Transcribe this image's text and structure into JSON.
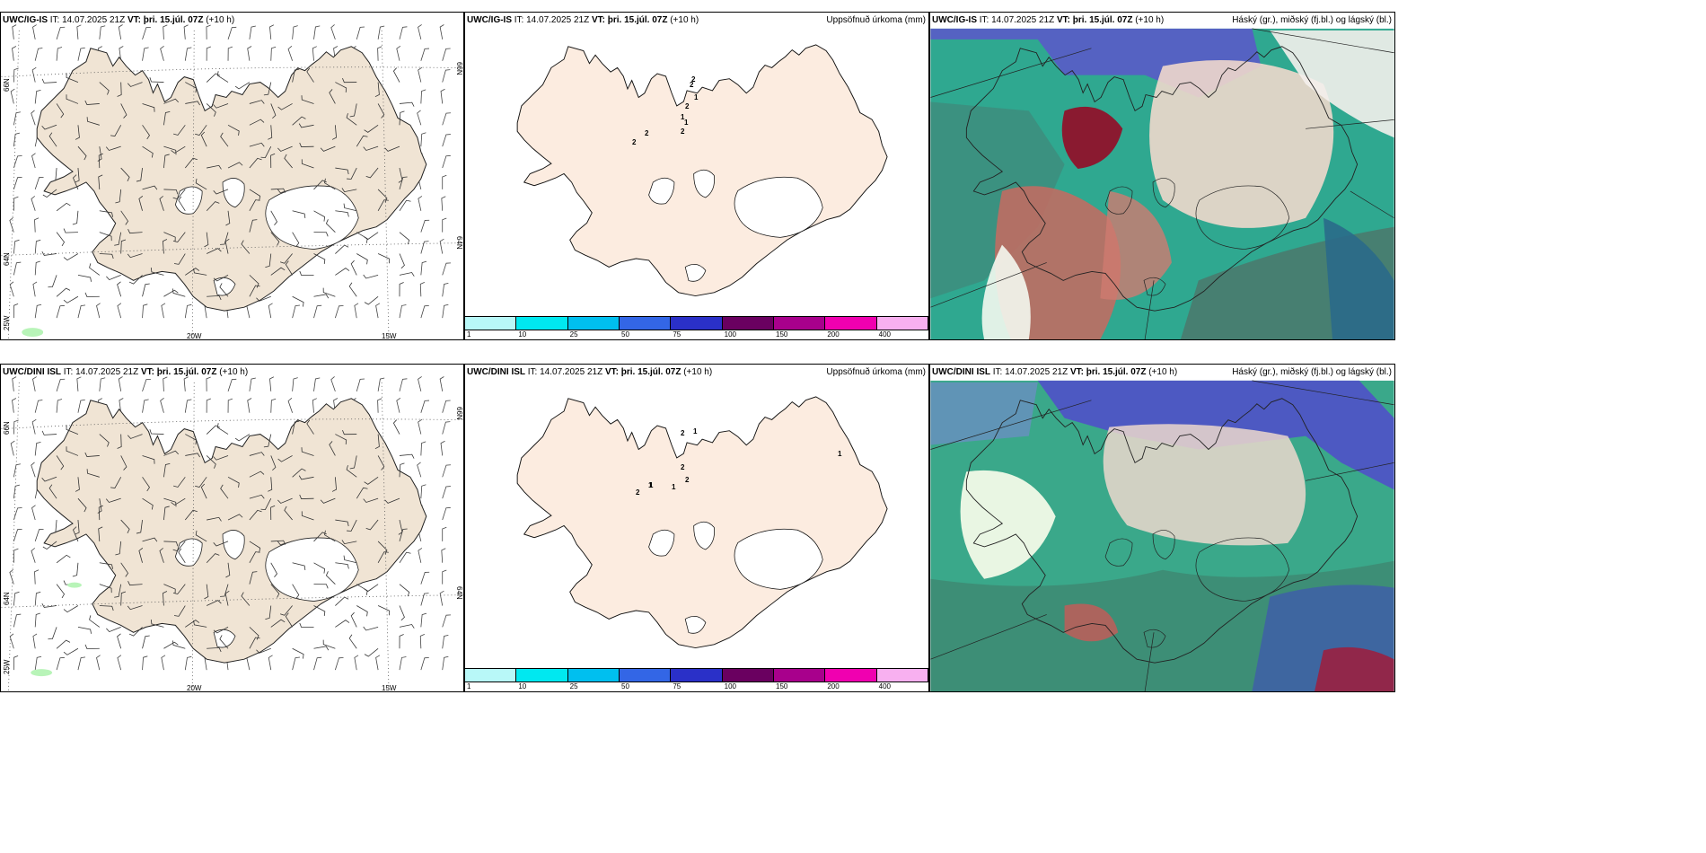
{
  "rows": [
    {
      "model": "UWC/IG-IS",
      "it": "IT: 14.07.2025 21Z",
      "vt": "VT: þri. 15.júl. 07Z",
      "lead": "(+10 h)"
    },
    {
      "model": "UWC/DINI ISL",
      "it": "IT: 14.07.2025 21Z",
      "vt": "VT: þri. 15.júl. 07Z",
      "lead": "(+10 h)"
    }
  ],
  "precip_title": "Uppsöfnuð úrkoma (mm)",
  "cloud_title": "Háský (gr.), miðský (fj.bl.) og lágský (bl.)",
  "grid_labels": {
    "lat66": "66N",
    "lat64": "64N",
    "lon25": "25W",
    "lon20": "20W",
    "lon15": "15W"
  },
  "colorbar": {
    "ticks": [
      "1",
      "10",
      "25",
      "50",
      "75",
      "100",
      "150",
      "200",
      "400"
    ],
    "colors": [
      "#b8f8f8",
      "#00e8f0",
      "#00bfef",
      "#3366e6",
      "#2a30c8",
      "#6a0060",
      "#a8008c",
      "#f000b0",
      "#f8b0f0"
    ]
  },
  "precip_labels": [
    [
      "2",
      "2",
      "1",
      "2",
      "1",
      "1",
      "2",
      "2",
      "2"
    ],
    [
      "2",
      "1",
      "2",
      "2",
      "1",
      "2",
      "1",
      "1",
      "1"
    ]
  ],
  "colors": {
    "land_wind": "#f0e4d4",
    "land_precip": "#fcece0",
    "cloud_green": "#2fbf85",
    "cloud_blue": "#4c4cc8",
    "cloud_red": "#a8202a"
  }
}
